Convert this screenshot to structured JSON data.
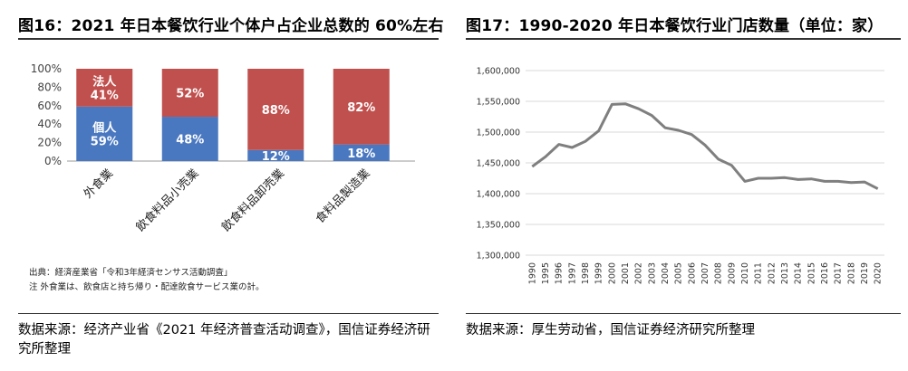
{
  "left": {
    "title": "图16：2021 年日本餐饮行业个体户占企业总数的 60%左右",
    "source_text": "数据来源：经济产业省《2021 年经济普查活动调查》，国信证券经济研究所整理",
    "footnote_1": "出典：経済産業省「令和3年経済センサス活動調査」",
    "footnote_2": "注  外食業は、飲食店と持ち帰り・配達飲食サービス業の計。",
    "chart_data": {
      "type": "bar",
      "stacked": true,
      "categories": [
        "外食業",
        "飲食料品小売業",
        "飲食料品卸売業",
        "食料品製造業"
      ],
      "series": [
        {
          "name": "個人",
          "values": [
            59,
            48,
            12,
            18
          ],
          "color": "#4a78c0"
        },
        {
          "name": "法人",
          "values": [
            41,
            52,
            88,
            82
          ],
          "color": "#c0504d"
        }
      ],
      "bar_labels": {
        "個人": [
          "個人\n59%",
          "48%",
          "12%",
          "18%"
        ],
        "法人": [
          "法人\n41%",
          "52%",
          "88%",
          "82%"
        ]
      },
      "ylim": [
        0,
        100
      ],
      "yticks": [
        "0%",
        "20%",
        "40%",
        "60%",
        "80%",
        "100%"
      ],
      "grid": false
    }
  },
  "right": {
    "title": "图17：1990-2020 年日本餐饮行业门店数量（单位：家）",
    "source_text": "数据来源：厚生劳动省，国信证券经济研究所整理",
    "chart_data": {
      "type": "line",
      "x": [
        "1990",
        "1995",
        "1996",
        "1997",
        "1998",
        "1999",
        "2000",
        "2001",
        "2002",
        "2003",
        "2004",
        "2005",
        "2006",
        "2007",
        "2008",
        "2009",
        "2010",
        "2011",
        "2012",
        "2013",
        "2014",
        "2015",
        "2016",
        "2017",
        "2018",
        "2019",
        "2020"
      ],
      "series": [
        {
          "values": [
            1444000,
            1460000,
            1480000,
            1475000,
            1485000,
            1502000,
            1545000,
            1546000,
            1538000,
            1527000,
            1507000,
            1503000,
            1496000,
            1479000,
            1456000,
            1446000,
            1420000,
            1425000,
            1425000,
            1426000,
            1423000,
            1424000,
            1420000,
            1420000,
            1418000,
            1419000,
            1408000
          ],
          "color": "#7f7f7f"
        }
      ],
      "ylim": [
        1300000,
        1600000
      ],
      "yticks": [
        "1,300,000",
        "1,350,000",
        "1,400,000",
        "1,450,000",
        "1,500,000",
        "1,550,000",
        "1,600,000"
      ],
      "grid": true
    }
  }
}
